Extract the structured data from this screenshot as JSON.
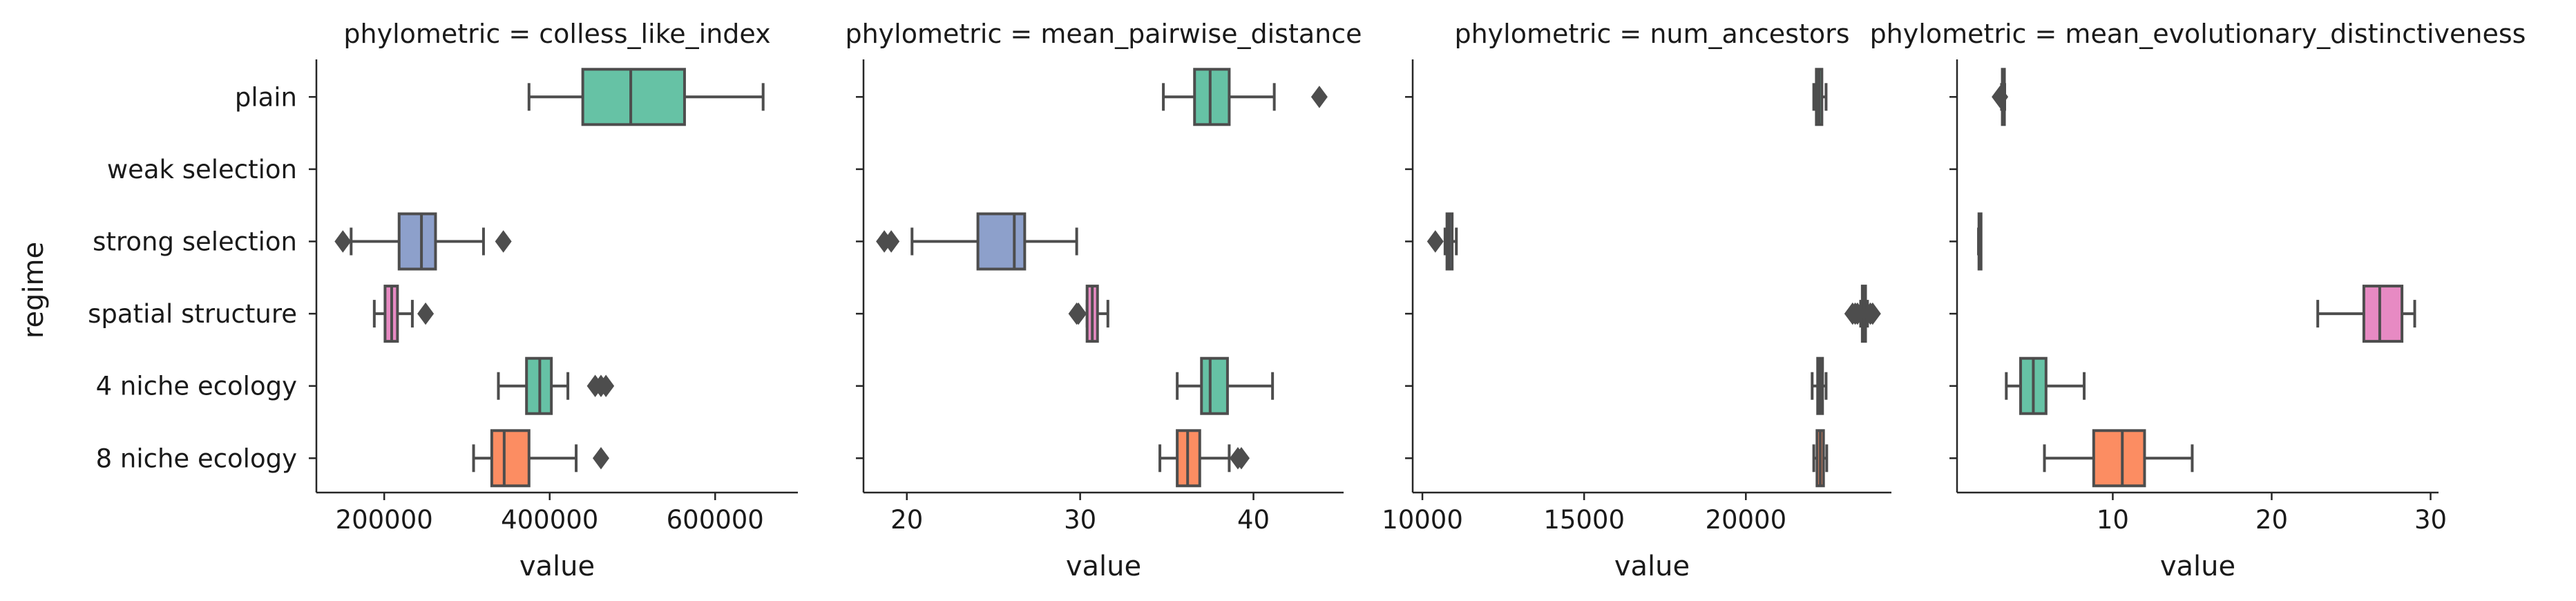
{
  "chart_data": {
    "type": "box",
    "ylabel": "regime",
    "categories": [
      "plain",
      "weak selection",
      "strong selection",
      "spatial structure",
      "4 niche ecology",
      "8 niche ecology"
    ],
    "colors": {
      "plain": "#66c2a5",
      "strong selection": "#8da0cb",
      "spatial structure": "#e78ac3",
      "4 niche ecology": "#66c2a5",
      "8 niche ecology": "#fc8d62",
      "line": "#4d4d4d"
    },
    "panels": [
      {
        "title": "phylometric = colless_like_index",
        "xlabel": "value",
        "xlim": [
          118000,
          700000
        ],
        "xticks": [
          200000,
          400000,
          600000
        ],
        "xtick_labels": [
          "200000",
          "400000",
          "600000"
        ],
        "boxes": [
          {
            "category": "plain",
            "color": "#66c2a5",
            "whislo": 375000,
            "q1": 440000,
            "med": 498000,
            "q3": 563000,
            "whishi": 658000,
            "fliers": []
          },
          {
            "category": "strong selection",
            "color": "#8da0cb",
            "whislo": 160000,
            "q1": 218000,
            "med": 245000,
            "q3": 262000,
            "whishi": 320000,
            "fliers": [
              150000,
              344000
            ]
          },
          {
            "category": "spatial structure",
            "color": "#e78ac3",
            "whislo": 188000,
            "q1": 201000,
            "med": 209000,
            "q3": 216000,
            "whishi": 234000,
            "fliers": [
              250000
            ]
          },
          {
            "category": "4 niche ecology",
            "color": "#66c2a5",
            "whislo": 338000,
            "q1": 372000,
            "med": 388000,
            "q3": 402000,
            "whishi": 422000,
            "fliers": [
              455000,
              462000,
              468000
            ]
          },
          {
            "category": "8 niche ecology",
            "color": "#fc8d62",
            "whislo": 308000,
            "q1": 330000,
            "med": 345000,
            "q3": 375000,
            "whishi": 432000,
            "fliers": [
              462000
            ]
          }
        ]
      },
      {
        "title": "phylometric = mean_pairwise_distance",
        "xlabel": "value",
        "xlim": [
          17.5,
          45.2
        ],
        "xticks": [
          20,
          30,
          40
        ],
        "xtick_labels": [
          "20",
          "30",
          "40"
        ],
        "boxes": [
          {
            "category": "plain",
            "color": "#66c2a5",
            "whislo": 34.8,
            "q1": 36.6,
            "med": 37.5,
            "q3": 38.6,
            "whishi": 41.2,
            "fliers": [
              43.8
            ]
          },
          {
            "category": "strong selection",
            "color": "#8da0cb",
            "whislo": 20.3,
            "q1": 24.1,
            "med": 26.2,
            "q3": 26.8,
            "whishi": 29.8,
            "fliers": [
              18.7,
              19.1
            ]
          },
          {
            "category": "spatial structure",
            "color": "#e78ac3",
            "whislo": 30.4,
            "q1": 30.4,
            "med": 30.7,
            "q3": 31.0,
            "whishi": 31.6,
            "fliers": [
              29.8,
              29.9
            ]
          },
          {
            "category": "4 niche ecology",
            "color": "#66c2a5",
            "whislo": 35.6,
            "q1": 37.0,
            "med": 37.5,
            "q3": 38.5,
            "whishi": 41.1,
            "fliers": []
          },
          {
            "category": "8 niche ecology",
            "color": "#fc8d62",
            "whislo": 34.6,
            "q1": 35.6,
            "med": 36.2,
            "q3": 36.9,
            "whishi": 38.6,
            "fliers": [
              39.1,
              39.3
            ]
          }
        ]
      },
      {
        "title": "phylometric = num_ancestors",
        "xlabel": "value",
        "xlim": [
          9700,
          24500
        ],
        "xticks": [
          10000,
          15000,
          20000
        ],
        "xtick_labels": [
          "10000",
          "15000",
          "20000"
        ],
        "boxes": [
          {
            "category": "plain",
            "color": "#66c2a5",
            "whislo": 22100,
            "q1": 22180,
            "med": 22260,
            "q3": 22350,
            "whishi": 22480,
            "fliers": []
          },
          {
            "category": "strong selection",
            "color": "#8da0cb",
            "whislo": 10700,
            "q1": 10760,
            "med": 10830,
            "q3": 10920,
            "whishi": 11050,
            "fliers": [
              10400
            ]
          },
          {
            "category": "spatial structure",
            "color": "#e78ac3",
            "whislo": 23550,
            "q1": 23600,
            "med": 23650,
            "q3": 23700,
            "whishi": 23760,
            "fliers": [
              23300,
              23380,
              23450,
              23850,
              23920
            ]
          },
          {
            "category": "4 niche ecology",
            "color": "#66c2a5",
            "whislo": 22050,
            "q1": 22220,
            "med": 22300,
            "q3": 22370,
            "whishi": 22480,
            "fliers": []
          },
          {
            "category": "8 niche ecology",
            "color": "#fc8d62",
            "whislo": 22100,
            "q1": 22200,
            "med": 22300,
            "q3": 22400,
            "whishi": 22500,
            "fliers": []
          }
        ]
      },
      {
        "title": "phylometric = mean_evolutionary_distinctiveness",
        "xlabel": "value",
        "xlim": [
          0.2,
          30.5
        ],
        "xticks": [
          10,
          20,
          30
        ],
        "xtick_labels": [
          "10",
          "20",
          "30"
        ],
        "boxes": [
          {
            "category": "plain",
            "color": "#66c2a5",
            "whislo": 3.0,
            "q1": 3.05,
            "med": 3.1,
            "q3": 3.15,
            "whishi": 3.2,
            "fliers": [
              2.9
            ]
          },
          {
            "category": "strong selection",
            "color": "#8da0cb",
            "whislo": 1.55,
            "q1": 1.58,
            "med": 1.6,
            "q3": 1.63,
            "whishi": 1.65,
            "fliers": []
          },
          {
            "category": "spatial structure",
            "color": "#e78ac3",
            "whislo": 22.9,
            "q1": 25.8,
            "med": 26.8,
            "q3": 28.2,
            "whishi": 29.0,
            "fliers": []
          },
          {
            "category": "4 niche ecology",
            "color": "#66c2a5",
            "whislo": 3.3,
            "q1": 4.2,
            "med": 5.0,
            "q3": 5.8,
            "whishi": 8.2,
            "fliers": []
          },
          {
            "category": "8 niche ecology",
            "color": "#fc8d62",
            "whislo": 5.7,
            "q1": 8.8,
            "med": 10.6,
            "q3": 12.0,
            "whishi": 15.0,
            "fliers": []
          }
        ]
      }
    ]
  }
}
